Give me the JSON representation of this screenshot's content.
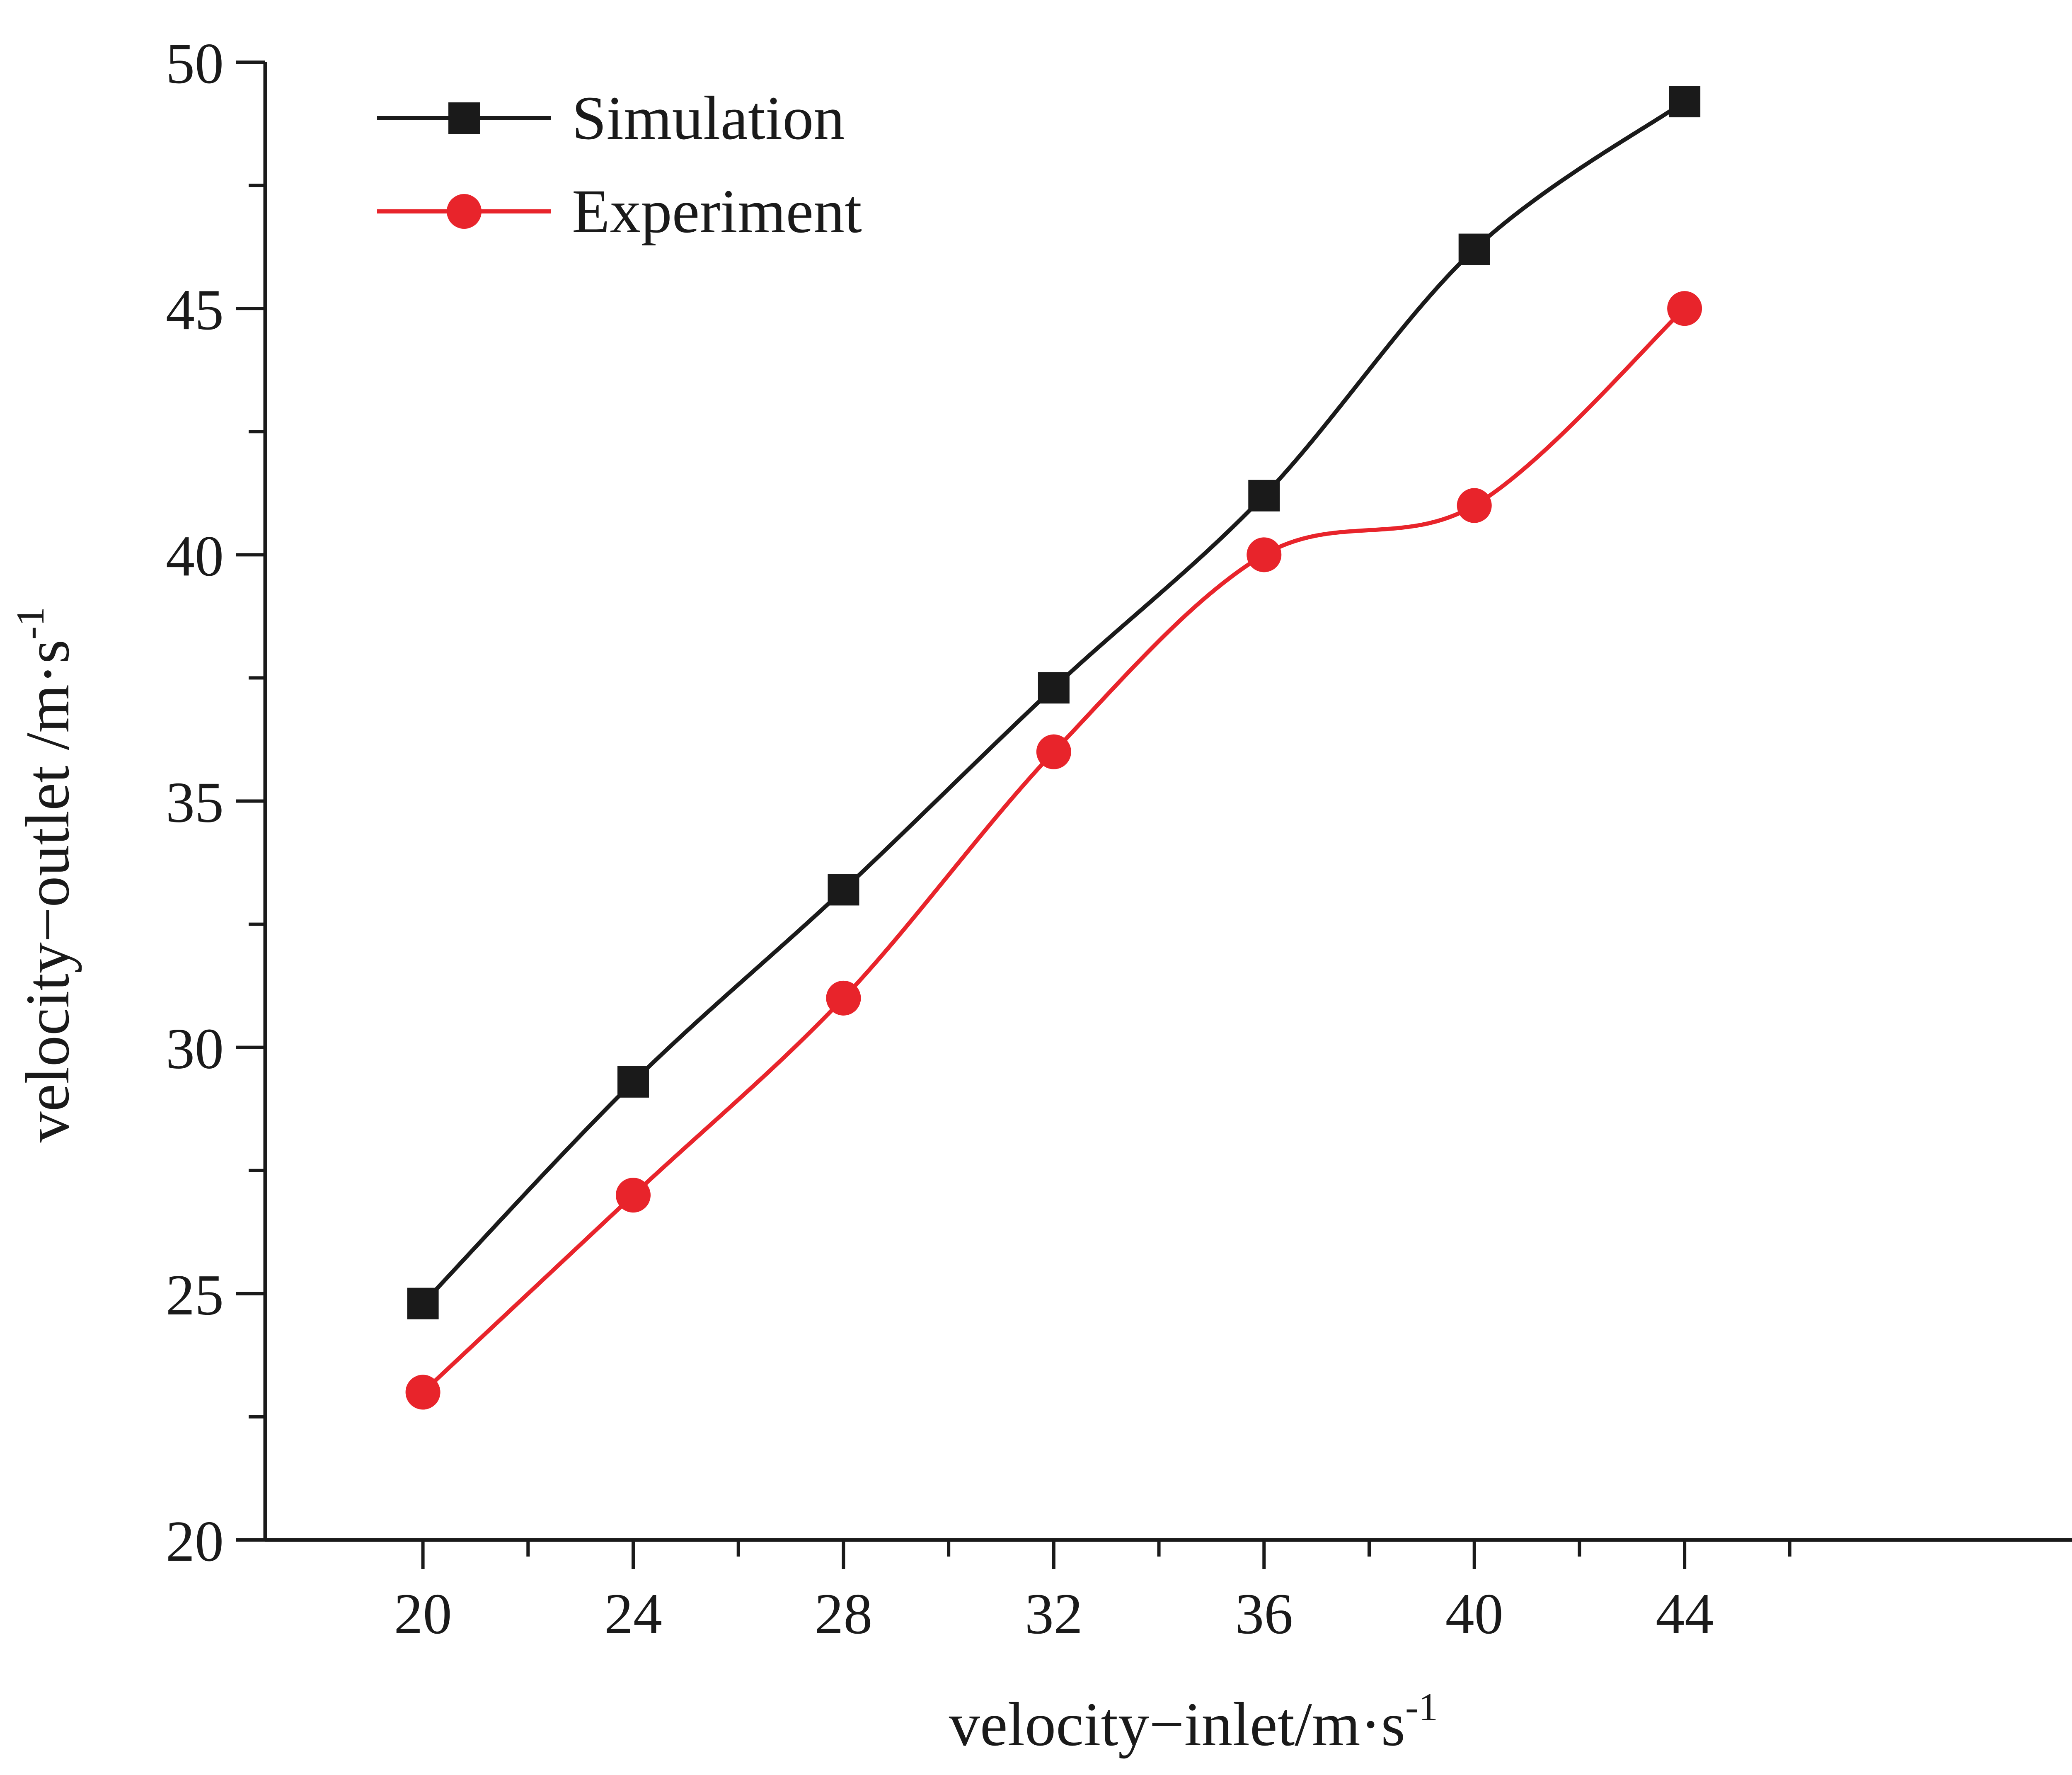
{
  "chart_data": {
    "type": "line",
    "title": "",
    "xlabel": "velocity−inlet/m·s",
    "xlabel_sup": "-1",
    "ylabel": "velocity−outlet /m·s",
    "ylabel_sup": "-1",
    "xlim": [
      17,
      52
    ],
    "ylim": [
      20,
      50
    ],
    "xticks": [
      20,
      24,
      28,
      32,
      36,
      40,
      44
    ],
    "yticks": [
      20,
      25,
      30,
      35,
      40,
      45,
      50
    ],
    "x": [
      20,
      24,
      28,
      32,
      36,
      40,
      44
    ],
    "series": [
      {
        "name": "Simulation",
        "color": "#1a1a1a",
        "marker": "square",
        "values": [
          24.8,
          29.3,
          33.2,
          37.3,
          41.2,
          46.2,
          49.2
        ]
      },
      {
        "name": "Experiment",
        "color": "#e8242b",
        "marker": "circle",
        "values": [
          23.0,
          27.0,
          31.0,
          36.0,
          40.0,
          41.0,
          45.0
        ]
      }
    ],
    "legend_position": "top-left",
    "grid": false
  }
}
